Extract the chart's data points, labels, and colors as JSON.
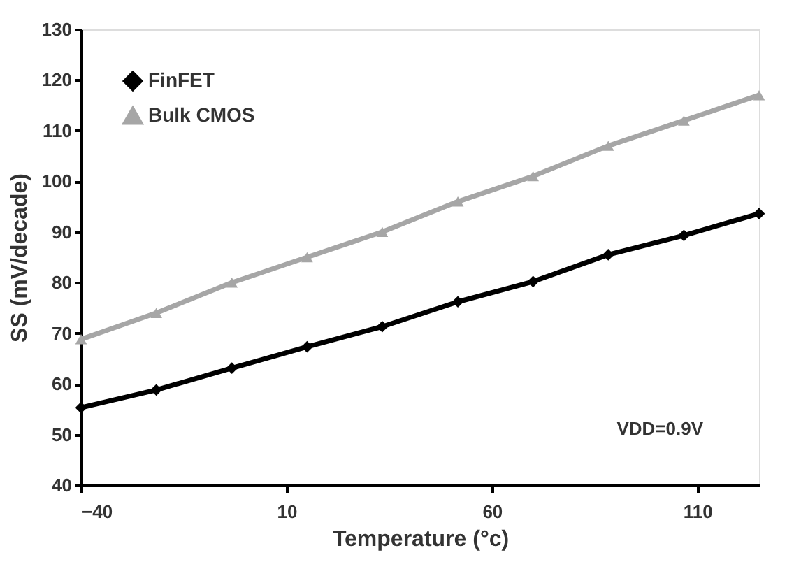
{
  "chart_data": {
    "type": "line",
    "xlabel": "Temperature (°c)",
    "ylabel": "SS (mV/decade)",
    "x": [
      -40,
      -21.7,
      -3.3,
      15,
      33.3,
      51.7,
      70,
      88.3,
      106.7,
      125
    ],
    "series": [
      {
        "name": "FinFET",
        "color": "#000000",
        "marker": "diamond",
        "values": [
          55.3,
          58.8,
          63.1,
          67.3,
          71.3,
          76.2,
          80.2,
          85.5,
          89.3,
          93.6
        ]
      },
      {
        "name": "Bulk CMOS",
        "color": "#a6a6a6",
        "marker": "triangle",
        "values": [
          68.8,
          74,
          80,
          85,
          90,
          96,
          101,
          107,
          112,
          117
        ]
      }
    ],
    "xlim": [
      -40,
      125
    ],
    "xticks": [
      -40,
      10,
      60,
      110
    ],
    "ylim": [
      40,
      130
    ],
    "yticks": [
      40,
      50,
      60,
      70,
      80,
      90,
      100,
      110,
      120,
      130
    ],
    "grid": false,
    "legend": "top left",
    "line_style": "solid",
    "annotations": [
      "VDD=0.9V"
    ]
  }
}
